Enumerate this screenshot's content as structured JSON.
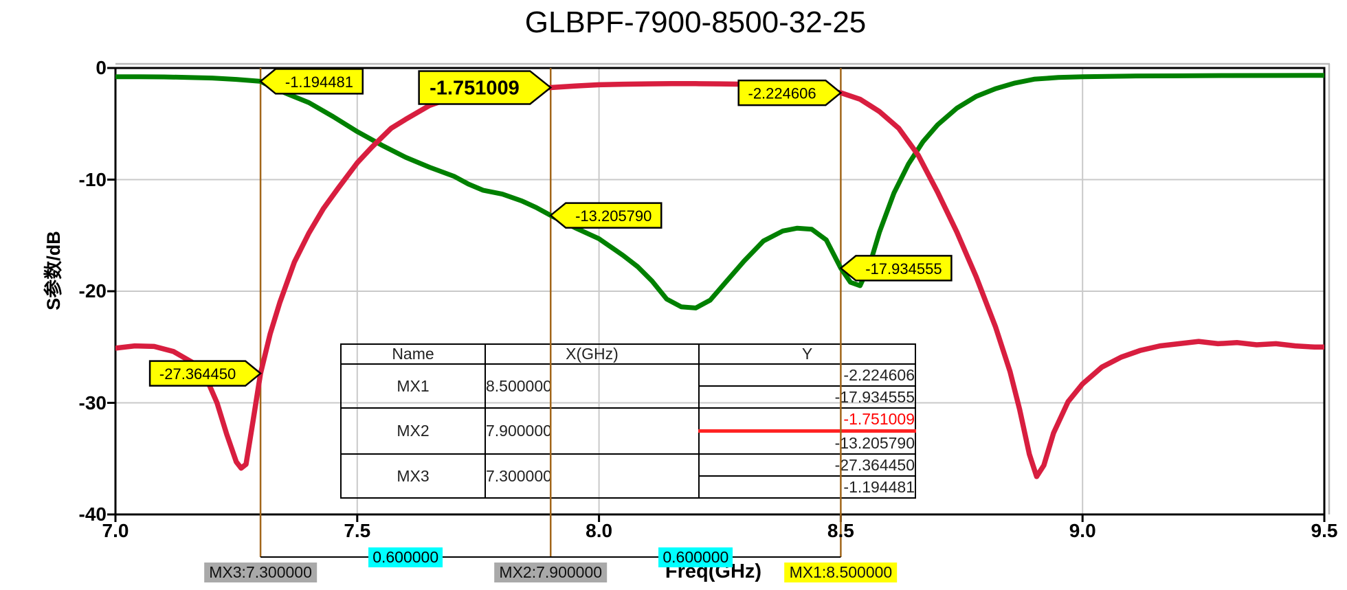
{
  "title": "GLBPF-7900-8500-32-25",
  "chart_data": {
    "type": "line",
    "title": "GLBPF-7900-8500-32-25",
    "xlabel": "Freq(GHz)",
    "ylabel": "S参数/dB",
    "xlim": [
      7.0,
      9.5
    ],
    "ylim": [
      -40,
      0
    ],
    "xticks": [
      "7.0",
      "7.5",
      "8.0",
      "8.5",
      "9.0",
      "9.5"
    ],
    "yticks": [
      "0",
      "-10",
      "-20",
      "-30",
      "-40"
    ],
    "grid": true,
    "legend": "none",
    "palette": {
      "red_curve": "#d81e3f",
      "green_curve": "#008000",
      "marker_line": "#a2661a",
      "grid_line": "#c9c9c9",
      "frame": "#000000",
      "frame_shadow": "#b9b9b9",
      "tag_fill": "#ffff00",
      "tag_border": "#000000",
      "highlight_red": "#ff2222",
      "delta_bg": "#00ffff",
      "handle_gray_bg": "#a9a9a9",
      "handle_yellow_bg": "#ffff00"
    },
    "series": [
      {
        "id": "green-curve",
        "color": "#008000",
        "width": 7,
        "points": [
          [
            7.0,
            -0.78
          ],
          [
            7.05,
            -0.79
          ],
          [
            7.1,
            -0.8
          ],
          [
            7.15,
            -0.84
          ],
          [
            7.2,
            -0.9
          ],
          [
            7.25,
            -1.02
          ],
          [
            7.3,
            -1.194
          ],
          [
            7.33,
            -1.85
          ],
          [
            7.36,
            -2.4
          ],
          [
            7.4,
            -3.1
          ],
          [
            7.45,
            -4.35
          ],
          [
            7.5,
            -5.7
          ],
          [
            7.55,
            -6.9
          ],
          [
            7.6,
            -8.0
          ],
          [
            7.65,
            -8.9
          ],
          [
            7.7,
            -9.7
          ],
          [
            7.73,
            -10.4
          ],
          [
            7.76,
            -10.95
          ],
          [
            7.8,
            -11.3
          ],
          [
            7.84,
            -11.9
          ],
          [
            7.87,
            -12.5
          ],
          [
            7.9,
            -13.206
          ],
          [
            7.95,
            -14.3
          ],
          [
            8.0,
            -15.3
          ],
          [
            8.05,
            -16.8
          ],
          [
            8.08,
            -17.8
          ],
          [
            8.11,
            -19.1
          ],
          [
            8.14,
            -20.7
          ],
          [
            8.17,
            -21.4
          ],
          [
            8.2,
            -21.5
          ],
          [
            8.23,
            -20.8
          ],
          [
            8.26,
            -19.3
          ],
          [
            8.3,
            -17.3
          ],
          [
            8.34,
            -15.5
          ],
          [
            8.38,
            -14.6
          ],
          [
            8.41,
            -14.35
          ],
          [
            8.44,
            -14.45
          ],
          [
            8.47,
            -15.4
          ],
          [
            8.5,
            -17.935
          ],
          [
            8.52,
            -19.2
          ],
          [
            8.54,
            -19.5
          ],
          [
            8.56,
            -17.6
          ],
          [
            8.58,
            -14.7
          ],
          [
            8.61,
            -11.2
          ],
          [
            8.64,
            -8.6
          ],
          [
            8.67,
            -6.6
          ],
          [
            8.7,
            -5.1
          ],
          [
            8.74,
            -3.6
          ],
          [
            8.78,
            -2.55
          ],
          [
            8.82,
            -1.85
          ],
          [
            8.86,
            -1.35
          ],
          [
            8.9,
            -1.0
          ],
          [
            8.95,
            -0.85
          ],
          [
            9.0,
            -0.78
          ],
          [
            9.1,
            -0.72
          ],
          [
            9.2,
            -0.7
          ],
          [
            9.3,
            -0.68
          ],
          [
            9.4,
            -0.67
          ],
          [
            9.5,
            -0.66
          ]
        ]
      },
      {
        "id": "red-curve",
        "color": "#d81e3f",
        "width": 7.5,
        "points": [
          [
            7.0,
            -25.1
          ],
          [
            7.04,
            -24.9
          ],
          [
            7.08,
            -24.95
          ],
          [
            7.12,
            -25.4
          ],
          [
            7.16,
            -26.4
          ],
          [
            7.19,
            -28.0
          ],
          [
            7.21,
            -30.0
          ],
          [
            7.23,
            -32.8
          ],
          [
            7.25,
            -35.3
          ],
          [
            7.26,
            -35.85
          ],
          [
            7.27,
            -35.5
          ],
          [
            7.285,
            -31.5
          ],
          [
            7.3,
            -27.364
          ],
          [
            7.32,
            -23.8
          ],
          [
            7.34,
            -21.0
          ],
          [
            7.37,
            -17.4
          ],
          [
            7.4,
            -14.8
          ],
          [
            7.43,
            -12.6
          ],
          [
            7.46,
            -10.8
          ],
          [
            7.5,
            -8.5
          ],
          [
            7.53,
            -7.1
          ],
          [
            7.57,
            -5.4
          ],
          [
            7.6,
            -4.6
          ],
          [
            7.65,
            -3.35
          ],
          [
            7.7,
            -2.6
          ],
          [
            7.75,
            -2.15
          ],
          [
            7.8,
            -1.95
          ],
          [
            7.85,
            -1.84
          ],
          [
            7.9,
            -1.751
          ],
          [
            7.95,
            -1.62
          ],
          [
            8.0,
            -1.5
          ],
          [
            8.05,
            -1.45
          ],
          [
            8.1,
            -1.42
          ],
          [
            8.15,
            -1.4
          ],
          [
            8.2,
            -1.4
          ],
          [
            8.25,
            -1.42
          ],
          [
            8.3,
            -1.45
          ],
          [
            8.35,
            -1.52
          ],
          [
            8.4,
            -1.63
          ],
          [
            8.45,
            -1.86
          ],
          [
            8.5,
            -2.2246
          ],
          [
            8.54,
            -2.8
          ],
          [
            8.58,
            -3.9
          ],
          [
            8.62,
            -5.4
          ],
          [
            8.66,
            -7.8
          ],
          [
            8.7,
            -11.1
          ],
          [
            8.74,
            -14.7
          ],
          [
            8.78,
            -18.7
          ],
          [
            8.82,
            -23.2
          ],
          [
            8.85,
            -27.2
          ],
          [
            8.87,
            -30.6
          ],
          [
            8.89,
            -34.6
          ],
          [
            8.905,
            -36.6
          ],
          [
            8.92,
            -35.6
          ],
          [
            8.94,
            -32.7
          ],
          [
            8.97,
            -29.9
          ],
          [
            9.0,
            -28.3
          ],
          [
            9.04,
            -26.8
          ],
          [
            9.08,
            -25.9
          ],
          [
            9.12,
            -25.3
          ],
          [
            9.16,
            -24.9
          ],
          [
            9.2,
            -24.7
          ],
          [
            9.24,
            -24.5
          ],
          [
            9.28,
            -24.7
          ],
          [
            9.32,
            -24.6
          ],
          [
            9.36,
            -24.8
          ],
          [
            9.4,
            -24.7
          ],
          [
            9.44,
            -24.9
          ],
          [
            9.48,
            -25.0
          ],
          [
            9.5,
            -25.0
          ]
        ]
      }
    ],
    "markers": [
      {
        "name": "MX1",
        "x": 8.5,
        "axis_label": "MX1:8.500000",
        "label_bg": "#ffff00"
      },
      {
        "name": "MX2",
        "x": 7.9,
        "axis_label": "MX2:7.900000",
        "label_bg": "#a9a9a9"
      },
      {
        "name": "MX3",
        "x": 7.3,
        "axis_label": "MX3:7.300000",
        "label_bg": "#a9a9a9"
      }
    ],
    "delta_labels": [
      {
        "text": "0.600000",
        "between": [
          7.3,
          7.9
        ]
      },
      {
        "text": "0.600000",
        "between": [
          7.9,
          8.5
        ]
      }
    ],
    "marker_value_tags": [
      {
        "text": "-1.194481",
        "marker": "MX3",
        "x": 7.3,
        "y": -1.194481,
        "side": "right",
        "bold": false
      },
      {
        "text": "-1.751009",
        "marker": "MX2",
        "x": 7.9,
        "y": -1.751009,
        "side": "left",
        "bold": true
      },
      {
        "text": "-2.224606",
        "marker": "MX1",
        "x": 8.5,
        "y": -2.224606,
        "side": "left",
        "bold": false
      },
      {
        "text": "-13.205790",
        "marker": "MX2",
        "x": 7.9,
        "y": -13.20579,
        "side": "right",
        "bold": false
      },
      {
        "text": "-17.934555",
        "marker": "MX1",
        "x": 8.5,
        "y": -17.934555,
        "side": "right",
        "bold": false
      },
      {
        "text": "-27.364450",
        "marker": "MX3",
        "x": 7.3,
        "y": -27.36445,
        "side": "left",
        "bold": false
      }
    ]
  },
  "table": {
    "headers": [
      "Name",
      "X(GHz)",
      "Y"
    ],
    "rows": [
      {
        "name": "MX1",
        "x": "8.500000",
        "y": [
          "-2.224606",
          "-17.934555"
        ],
        "highlight": -1
      },
      {
        "name": "MX2",
        "x": "7.900000",
        "y": [
          "-1.751009",
          "-13.205790"
        ],
        "highlight": 0
      },
      {
        "name": "MX3",
        "x": "7.300000",
        "y": [
          "-27.364450",
          "-1.194481"
        ],
        "highlight": -1
      }
    ]
  }
}
